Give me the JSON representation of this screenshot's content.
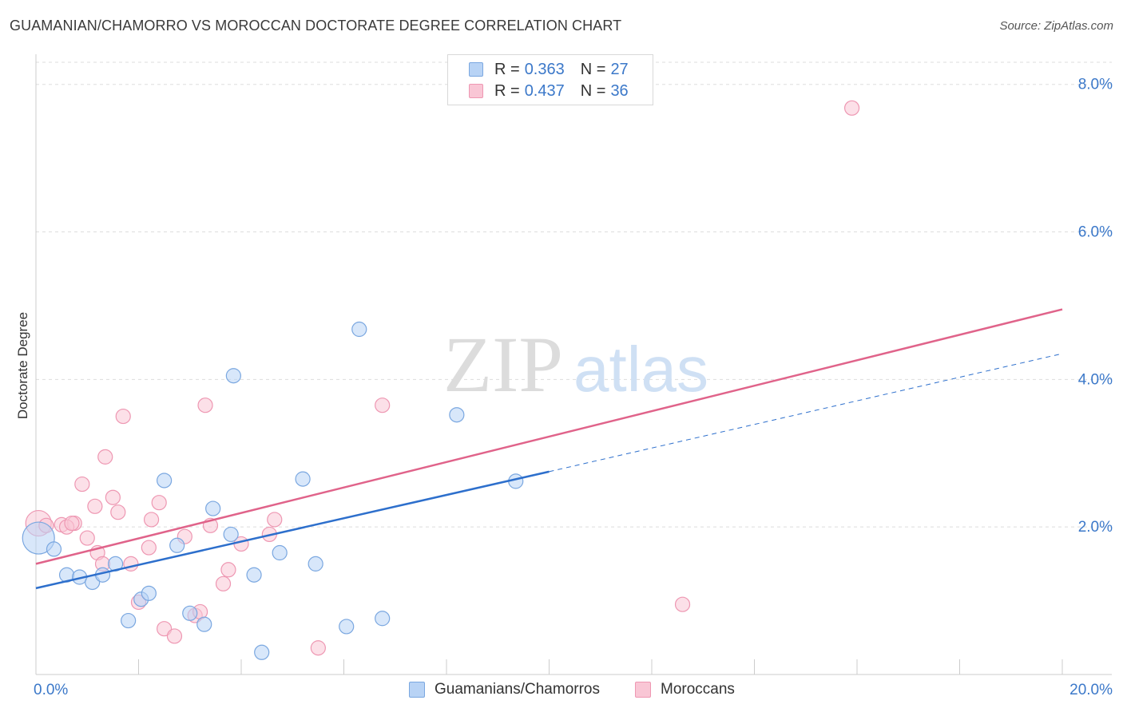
{
  "header": {
    "title": "GUAMANIAN/CHAMORRO VS MOROCCAN DOCTORATE DEGREE CORRELATION CHART",
    "source": "Source: ZipAtlas.com"
  },
  "watermark": {
    "zip": "ZIP",
    "atlas": "atlas"
  },
  "legend": {
    "series1": {
      "r_label": "R =",
      "r_value": "0.363",
      "n_label": "N =",
      "n_value": "27"
    },
    "series2": {
      "r_label": "R =",
      "r_value": "0.437",
      "n_label": "N =",
      "n_value": "36"
    }
  },
  "bottom_legend": {
    "series1": "Guamanians/Chamorros",
    "series2": "Moroccans"
  },
  "colors": {
    "blue_fill": "#b8d3f5",
    "blue_stroke": "#7aa7e0",
    "blue_line": "#2d6fcc",
    "pink_fill": "#f9c6d5",
    "pink_stroke": "#ee97b2",
    "pink_line": "#e0638a",
    "tick_label": "#3b78c9",
    "grid": "#dddddd"
  },
  "chart_data": {
    "type": "scatter",
    "title": "GUAMANIAN/CHAMORRO VS MOROCCAN DOCTORATE DEGREE CORRELATION CHART",
    "xlabel": "",
    "ylabel": "Doctorate Degree",
    "xlim": [
      0,
      20
    ],
    "ylim": [
      0,
      8.3
    ],
    "x_tick_labels": [
      {
        "value": 0,
        "label": "0.0%"
      },
      {
        "value": 20,
        "label": "20.0%"
      }
    ],
    "y_tick_labels": [
      {
        "value": 2,
        "label": "2.0%"
      },
      {
        "value": 4,
        "label": "4.0%"
      },
      {
        "value": 6,
        "label": "6.0%"
      },
      {
        "value": 8,
        "label": "8.0%"
      }
    ],
    "x_minor_ticks": [
      2,
      4,
      6,
      8,
      10,
      12,
      14,
      16,
      18,
      20
    ],
    "series": [
      {
        "name": "Guamanians/Chamorros",
        "color_key": "blue",
        "points": [
          [
            0.05,
            1.85,
            20
          ],
          [
            0.35,
            1.7,
            9
          ],
          [
            0.6,
            1.35,
            9
          ],
          [
            0.85,
            1.32,
            9
          ],
          [
            1.1,
            1.25,
            9
          ],
          [
            1.3,
            1.35,
            9
          ],
          [
            1.55,
            1.5,
            9
          ],
          [
            1.8,
            0.73,
            9
          ],
          [
            2.05,
            1.02,
            9
          ],
          [
            2.2,
            1.1,
            9
          ],
          [
            2.5,
            2.63,
            9
          ],
          [
            2.75,
            1.75,
            9
          ],
          [
            3.0,
            0.83,
            9
          ],
          [
            3.28,
            0.68,
            9
          ],
          [
            3.45,
            2.25,
            9
          ],
          [
            3.8,
            1.9,
            9
          ],
          [
            3.85,
            4.05,
            9
          ],
          [
            4.25,
            1.35,
            9
          ],
          [
            4.4,
            0.3,
            9
          ],
          [
            4.75,
            1.65,
            9
          ],
          [
            5.2,
            2.65,
            9
          ],
          [
            5.45,
            1.5,
            9
          ],
          [
            6.05,
            0.65,
            9
          ],
          [
            6.3,
            4.68,
            9
          ],
          [
            6.75,
            0.76,
            9
          ],
          [
            8.2,
            3.52,
            9
          ],
          [
            9.35,
            2.62,
            9
          ]
        ],
        "trend": {
          "x": [
            0,
            10
          ],
          "y": [
            1.17,
            2.75
          ]
        },
        "trend_extension": {
          "x": [
            10,
            20
          ],
          "y": [
            2.75,
            4.35
          ]
        }
      },
      {
        "name": "Moroccans",
        "color_key": "pink",
        "points": [
          [
            0.05,
            2.05,
            16
          ],
          [
            0.2,
            2.02,
            9
          ],
          [
            0.5,
            2.03,
            9
          ],
          [
            0.75,
            2.05,
            9
          ],
          [
            0.6,
            2.0,
            9
          ],
          [
            0.7,
            2.05,
            9
          ],
          [
            0.9,
            2.58,
            9
          ],
          [
            1.0,
            1.85,
            9
          ],
          [
            1.15,
            2.28,
            9
          ],
          [
            1.2,
            1.65,
            9
          ],
          [
            1.3,
            1.5,
            9
          ],
          [
            1.35,
            2.95,
            9
          ],
          [
            1.5,
            2.4,
            9
          ],
          [
            1.6,
            2.2,
            9
          ],
          [
            1.7,
            3.5,
            9
          ],
          [
            1.85,
            1.5,
            9
          ],
          [
            2.0,
            0.98,
            9
          ],
          [
            2.2,
            1.72,
            9
          ],
          [
            2.25,
            2.1,
            9
          ],
          [
            2.4,
            2.33,
            9
          ],
          [
            2.5,
            0.62,
            9
          ],
          [
            2.7,
            0.52,
            9
          ],
          [
            2.9,
            1.87,
            9
          ],
          [
            3.1,
            0.8,
            9
          ],
          [
            3.2,
            0.85,
            9
          ],
          [
            3.3,
            3.65,
            9
          ],
          [
            3.4,
            2.02,
            9
          ],
          [
            3.65,
            1.23,
            9
          ],
          [
            3.75,
            1.42,
            9
          ],
          [
            4.0,
            1.77,
            9
          ],
          [
            4.55,
            1.9,
            9
          ],
          [
            4.65,
            2.1,
            9
          ],
          [
            5.5,
            0.36,
            9
          ],
          [
            6.75,
            3.65,
            9
          ],
          [
            12.6,
            0.95,
            9
          ],
          [
            15.9,
            7.68,
            9
          ]
        ],
        "trend": {
          "x": [
            0,
            20
          ],
          "y": [
            1.5,
            4.95
          ]
        }
      }
    ]
  }
}
